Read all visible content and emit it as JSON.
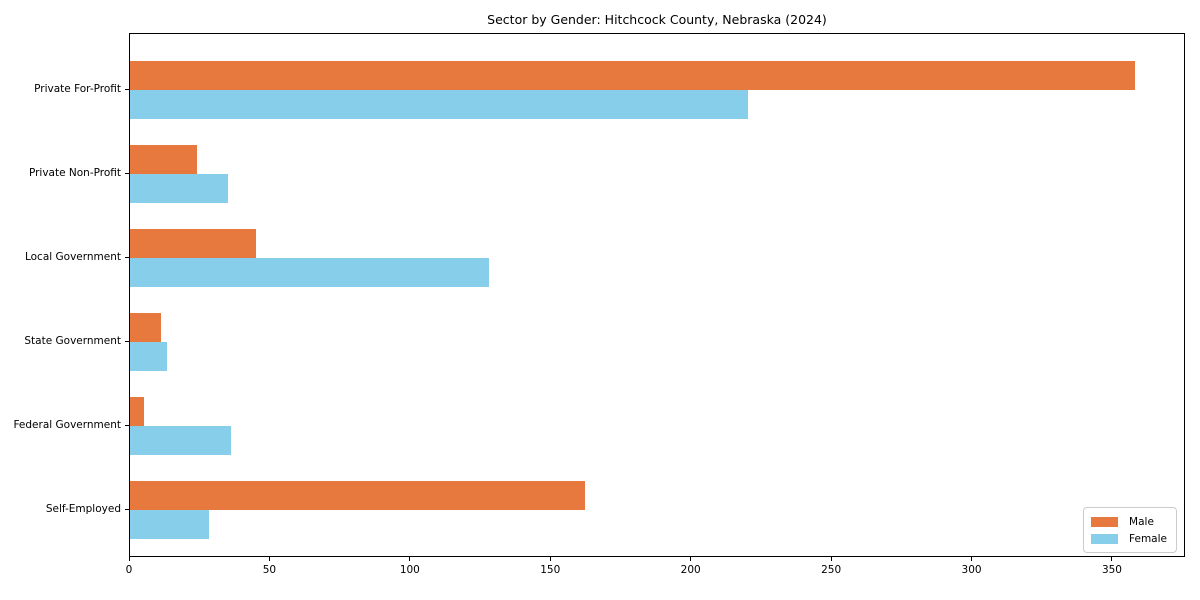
{
  "chart_data": {
    "type": "bar",
    "orientation": "horizontal",
    "title": "Sector by Gender: Hitchcock County, Nebraska (2024)",
    "categories": [
      "Private For-Profit",
      "Private Non-Profit",
      "Local Government",
      "State Government",
      "Federal Government",
      "Self-Employed"
    ],
    "series": [
      {
        "name": "Male",
        "color": "#E8793E",
        "values": [
          358,
          24,
          45,
          11,
          5,
          162
        ]
      },
      {
        "name": "Female",
        "color": "#87CEEB",
        "values": [
          220,
          35,
          128,
          13,
          36,
          28
        ]
      }
    ],
    "xlabel": "",
    "ylabel": "",
    "xlim": [
      0,
      376
    ],
    "xticks": [
      0,
      50,
      100,
      150,
      200,
      250,
      300,
      350
    ],
    "grid": false,
    "legend_position": "lower-right",
    "legend_labels": [
      "Male",
      "Female"
    ]
  }
}
